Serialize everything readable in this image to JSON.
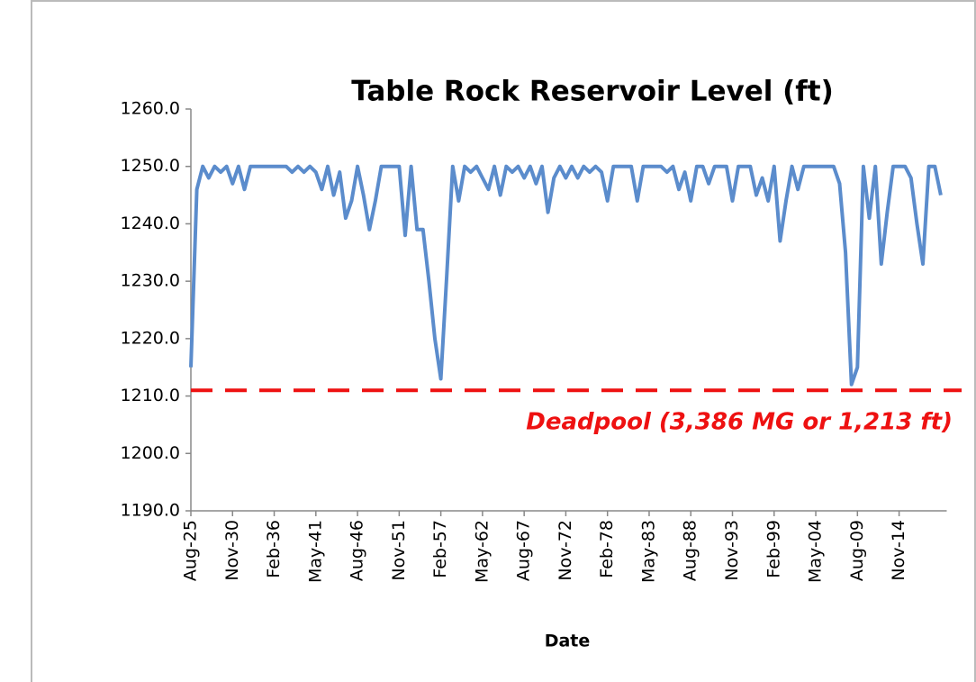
{
  "chart_data": {
    "type": "line",
    "title": "Table Rock Reservoir Level (ft)",
    "x_label": "Date",
    "categories": [
      "Aug-25",
      null,
      null,
      null,
      null,
      null,
      null,
      "Nov-30",
      null,
      null,
      null,
      null,
      null,
      null,
      "Feb-36",
      null,
      null,
      null,
      null,
      null,
      null,
      "May-41",
      null,
      null,
      null,
      null,
      null,
      null,
      "Aug-46",
      null,
      null,
      null,
      null,
      null,
      null,
      "Nov-51",
      null,
      null,
      null,
      null,
      null,
      null,
      "Feb-57",
      null,
      null,
      null,
      null,
      null,
      null,
      "May-62",
      null,
      null,
      null,
      null,
      null,
      null,
      "Aug-67",
      null,
      null,
      null,
      null,
      null,
      null,
      "Nov-72",
      null,
      null,
      null,
      null,
      null,
      null,
      "Feb-78",
      null,
      null,
      null,
      null,
      null,
      null,
      "May-83",
      null,
      null,
      null,
      null,
      null,
      null,
      "Aug-88",
      null,
      null,
      null,
      null,
      null,
      null,
      "Nov-93",
      null,
      null,
      null,
      null,
      null,
      null,
      "Feb-99",
      null,
      null,
      null,
      null,
      null,
      null,
      "May-04",
      null,
      null,
      null,
      null,
      null,
      null,
      "Aug-09",
      null,
      null,
      null,
      null,
      null,
      null,
      "Nov-14",
      null,
      null,
      null,
      null,
      null,
      null,
      null
    ],
    "values": [
      1215,
      1246,
      1250,
      1248,
      1250,
      1249,
      1250,
      1247,
      1250,
      1246,
      1250,
      1250,
      1250,
      1250,
      1250,
      1250,
      1250,
      1249,
      1250,
      1249,
      1250,
      1249,
      1246,
      1250,
      1245,
      1249,
      1241,
      1244,
      1250,
      1245,
      1239,
      1244,
      1250,
      1250,
      1250,
      1250,
      1238,
      1250,
      1239,
      1239,
      1230,
      1220,
      1213,
      1231,
      1250,
      1244,
      1250,
      1249,
      1250,
      1248,
      1246,
      1250,
      1245,
      1250,
      1249,
      1250,
      1248,
      1250,
      1247,
      1250,
      1242,
      1248,
      1250,
      1248,
      1250,
      1248,
      1250,
      1249,
      1250,
      1249,
      1244,
      1250,
      1250,
      1250,
      1250,
      1244,
      1250,
      1250,
      1250,
      1250,
      1249,
      1250,
      1246,
      1249,
      1244,
      1250,
      1250,
      1247,
      1250,
      1250,
      1250,
      1244,
      1250,
      1250,
      1250,
      1245,
      1248,
      1244,
      1250,
      1237,
      1244,
      1250,
      1246,
      1250,
      1250,
      1250,
      1250,
      1250,
      1250,
      1247,
      1235,
      1212,
      1215,
      1250,
      1241,
      1250,
      1233,
      1242,
      1250,
      1250,
      1250,
      1248,
      1240,
      1233,
      1250,
      1250,
      1245
    ],
    "color": "#5b8ccc",
    "ylim": [
      1190,
      1260
    ],
    "yticks": [
      {
        "value": 1190,
        "label": "1190.0"
      },
      {
        "value": 1200,
        "label": "1200.0"
      },
      {
        "value": 1210,
        "label": "1210.0"
      },
      {
        "value": 1220,
        "label": "1220.0"
      },
      {
        "value": 1230,
        "label": "1230.0"
      },
      {
        "value": 1240,
        "label": "1240.0"
      },
      {
        "value": 1250,
        "label": "1250.0"
      },
      {
        "value": 1260,
        "label": "1260.0"
      }
    ],
    "reference_line": {
      "value": 1211,
      "label": "Deadpool (3,386 MG or 1,213 ft)",
      "color": "#ee1111"
    }
  }
}
